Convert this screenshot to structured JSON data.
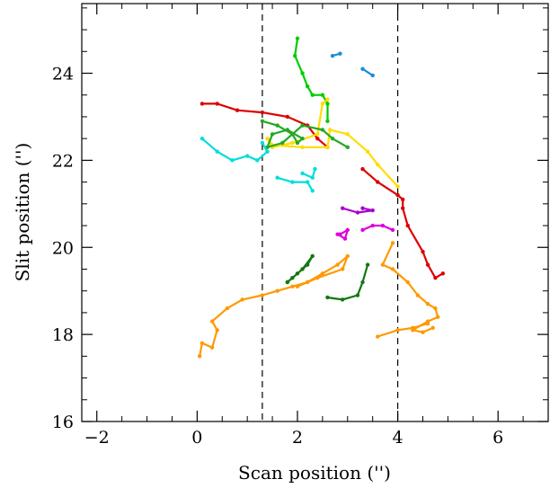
{
  "chart_data": {
    "type": "line",
    "xlabel": "Scan position ('')",
    "ylabel": "Slit position ('')",
    "xlim": [
      -2.3,
      7.0
    ],
    "ylim": [
      16,
      25.6
    ],
    "xticks": [
      -2,
      0,
      2,
      4,
      6
    ],
    "xtick_labels": [
      "−2",
      "0",
      "2",
      "4",
      "6"
    ],
    "yticks": [
      16,
      18,
      20,
      22,
      24
    ],
    "ytick_labels": [
      "16",
      "18",
      "20",
      "22",
      "24"
    ],
    "dashed_vlines": [
      1.3,
      4.0
    ],
    "grid": false,
    "series": [
      {
        "color": "#dd0000",
        "x": [
          0.1,
          0.4,
          0.8,
          1.3,
          1.8,
          2.2,
          2.4,
          2.6
        ],
        "y": [
          23.3,
          23.3,
          23.15,
          23.1,
          23.0,
          22.8,
          22.5,
          22.3
        ]
      },
      {
        "color": "#00cc00",
        "x": [
          2.0,
          1.95,
          2.1,
          2.2,
          2.3,
          2.5,
          2.6,
          2.6
        ],
        "y": [
          24.8,
          24.4,
          24.0,
          23.7,
          23.5,
          23.5,
          23.3,
          22.9
        ]
      },
      {
        "color": "#1a8cdd",
        "x": [
          2.7,
          2.85
        ],
        "y": [
          24.4,
          24.45
        ]
      },
      {
        "color": "#1a8cdd",
        "x": [
          3.3,
          3.5
        ],
        "y": [
          24.1,
          23.95
        ]
      },
      {
        "color": "#ffdd00",
        "x": [
          2.6,
          2.5,
          2.4,
          1.9,
          1.5,
          1.4,
          1.5,
          2.1,
          2.6,
          2.65,
          3.0,
          3.4,
          3.6,
          4.0
        ],
        "y": [
          23.4,
          23.3,
          22.6,
          22.4,
          22.3,
          22.5,
          22.35,
          22.3,
          22.3,
          22.7,
          22.6,
          22.2,
          21.9,
          21.4
        ]
      },
      {
        "color": "#22aa22",
        "x": [
          1.3,
          1.6,
          1.9,
          2.0,
          2.1,
          1.8,
          1.5,
          1.4,
          1.7,
          2.1,
          2.5,
          2.7,
          3.0
        ],
        "y": [
          22.9,
          22.8,
          22.6,
          22.4,
          22.5,
          22.7,
          22.6,
          22.3,
          22.4,
          22.8,
          22.7,
          22.5,
          22.3
        ]
      },
      {
        "color": "#00dddd",
        "x": [
          0.1,
          0.4,
          0.7,
          1.0,
          1.2,
          1.4,
          1.3
        ],
        "y": [
          22.5,
          22.2,
          22.0,
          22.1,
          22.0,
          22.2,
          22.4
        ]
      },
      {
        "color": "#00dddd",
        "x": [
          1.6,
          1.9,
          2.2,
          2.3
        ],
        "y": [
          21.6,
          21.5,
          21.5,
          21.3
        ]
      },
      {
        "color": "#00dddd",
        "x": [
          2.1,
          2.3,
          2.35
        ],
        "y": [
          21.7,
          21.6,
          21.8
        ]
      },
      {
        "color": "#dd0000",
        "x": [
          3.3,
          3.6,
          4.0,
          4.1,
          4.1,
          4.2,
          4.5,
          4.6,
          4.75,
          4.9
        ],
        "y": [
          21.8,
          21.5,
          21.2,
          21.1,
          20.9,
          20.5,
          19.9,
          19.6,
          19.3,
          19.4
        ]
      },
      {
        "color": "#aa00cc",
        "x": [
          2.9,
          3.2,
          3.5,
          3.3
        ],
        "y": [
          20.9,
          20.8,
          20.85,
          20.9
        ]
      },
      {
        "color": "#dd00dd",
        "x": [
          3.3,
          3.5,
          3.7,
          3.9
        ],
        "y": [
          20.4,
          20.5,
          20.5,
          20.4
        ]
      },
      {
        "color": "#dd00dd",
        "x": [
          2.8,
          2.95,
          3.0,
          2.85
        ],
        "y": [
          20.3,
          20.2,
          20.4,
          20.3
        ]
      },
      {
        "color": "#ff9900",
        "x": [
          0.05,
          0.1,
          0.3,
          0.4,
          0.3,
          0.6,
          0.9,
          1.3,
          1.6,
          1.9,
          2.2,
          2.5,
          2.8,
          3.0,
          2.9,
          2.4,
          2.2,
          2.0
        ],
        "y": [
          17.5,
          17.8,
          17.7,
          18.1,
          18.3,
          18.6,
          18.8,
          18.9,
          19.0,
          19.1,
          19.2,
          19.4,
          19.6,
          19.8,
          19.5,
          19.3,
          19.2,
          19.1
        ]
      },
      {
        "color": "#ff9900",
        "x": [
          3.9,
          3.7,
          3.9,
          4.2,
          4.4,
          4.6,
          4.75,
          4.8,
          4.6,
          4.3,
          4.5,
          4.7
        ],
        "y": [
          20.1,
          19.6,
          19.5,
          19.2,
          18.9,
          18.7,
          18.6,
          18.4,
          18.3,
          18.1,
          18.05,
          18.15
        ]
      },
      {
        "color": "#ff9900",
        "x": [
          3.6,
          4.0,
          4.3,
          4.6
        ],
        "y": [
          17.95,
          18.1,
          18.15,
          18.25
        ]
      },
      {
        "color": "#117711",
        "x": [
          1.8,
          2.0,
          2.2,
          2.3,
          2.1,
          1.9,
          1.8
        ],
        "y": [
          19.2,
          19.4,
          19.6,
          19.8,
          19.5,
          19.3,
          19.2
        ]
      },
      {
        "color": "#117711",
        "x": [
          2.6,
          2.9,
          3.2,
          3.3,
          3.4
        ],
        "y": [
          18.85,
          18.8,
          18.9,
          19.2,
          19.6
        ]
      }
    ]
  }
}
